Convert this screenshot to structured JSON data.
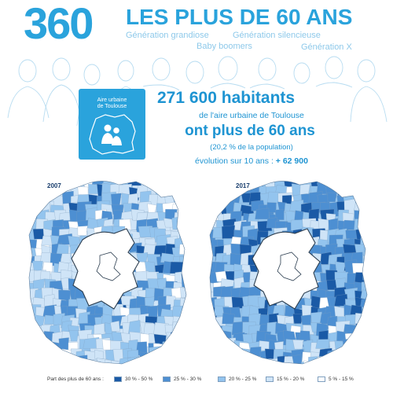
{
  "header": {
    "big_number": "360",
    "title": "LES PLUS DE 60 ANS",
    "generations": [
      "Génération grandiose",
      "Génération silencieuse",
      "Baby boomers",
      "Génération X"
    ]
  },
  "badge": {
    "label_line1": "Aire urbaine",
    "label_line2": "de Toulouse",
    "icon": "people-silhouette-icon"
  },
  "stats": {
    "habitants_number": "271 600",
    "habitants_word": "habitants",
    "aire_line": "de l'aire urbaine de Toulouse",
    "age_line": "ont plus de 60 ans",
    "pct_line": "(20,2 % de la population)",
    "evo_label": "évolution sur 10 ans :",
    "evo_value": "+ 62 900"
  },
  "maps": [
    {
      "year": "2007"
    },
    {
      "year": "2017"
    }
  ],
  "legend": {
    "title": "Part des plus de 60 ans :",
    "items": [
      {
        "label": "30 % - 50 %",
        "color": "#1a5aa6"
      },
      {
        "label": "25 % - 30 %",
        "color": "#4d8fd2"
      },
      {
        "label": "20 % - 25 %",
        "color": "#93c4ee"
      },
      {
        "label": "15 % - 20 %",
        "color": "#cfe4f7"
      },
      {
        "label": "5 % - 15 %",
        "color": "#ffffff"
      }
    ]
  },
  "colors": {
    "accent": "#2aa3dc",
    "text_blue": "#1e94d2"
  }
}
